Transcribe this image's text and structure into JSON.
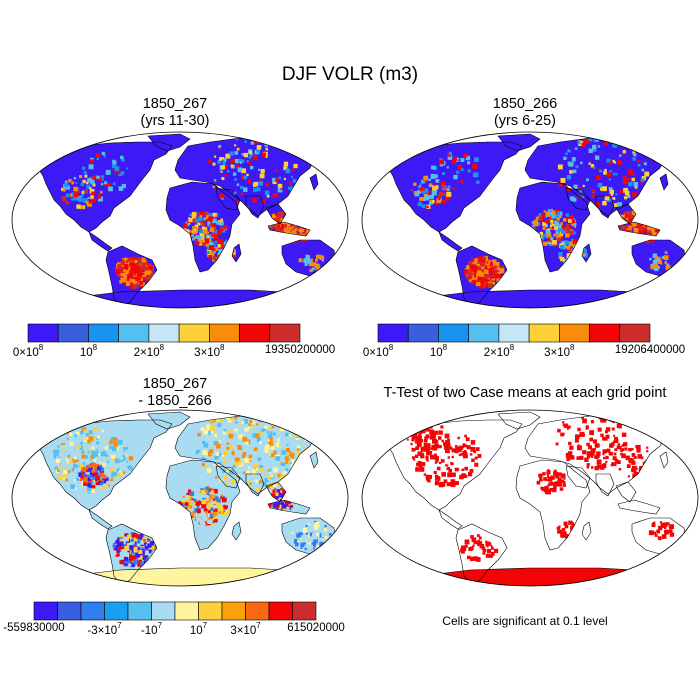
{
  "figure": {
    "title": "DJF VOLR (m3)",
    "panels": [
      {
        "id": "case1",
        "title_lines": [
          "1850_267",
          "(yrs 11-30)"
        ],
        "colorbar": {
          "colors": [
            "#3d1af5",
            "#3a5ee0",
            "#1993f0",
            "#55bff0",
            "#c6e6f7",
            "#fdd137",
            "#f98c0b",
            "#f40406",
            "#cb2d2d"
          ],
          "labels": [
            {
              "pos": 0,
              "base": "0×10",
              "exp": "8"
            },
            {
              "pos": 2,
              "base": "10",
              "exp": "8"
            },
            {
              "pos": 4,
              "base": "2×10",
              "exp": "8"
            },
            {
              "pos": 6,
              "base": "3×10",
              "exp": "8"
            },
            {
              "pos": 9,
              "base": "19350200000",
              "exp": ""
            }
          ]
        }
      },
      {
        "id": "case2",
        "title_lines": [
          "1850_266",
          "(yrs 6-25)"
        ],
        "colorbar": {
          "colors": [
            "#3d1af5",
            "#3a5ee0",
            "#1993f0",
            "#55bff0",
            "#c6e6f7",
            "#fdd137",
            "#f98c0b",
            "#f40406",
            "#cb2d2d"
          ],
          "labels": [
            {
              "pos": 0,
              "base": "0×10",
              "exp": "8"
            },
            {
              "pos": 2,
              "base": "10",
              "exp": "8"
            },
            {
              "pos": 4,
              "base": "2×10",
              "exp": "8"
            },
            {
              "pos": 6,
              "base": "3×10",
              "exp": "8"
            },
            {
              "pos": 9,
              "base": "19206400000",
              "exp": ""
            }
          ]
        }
      },
      {
        "id": "diff",
        "title_lines": [
          "1850_267",
          "- 1850_266"
        ],
        "colorbar": {
          "colors": [
            "#3d1af5",
            "#3a5ee0",
            "#2f7ef0",
            "#1aa0f0",
            "#55bff0",
            "#a9dcf2",
            "#fff59e",
            "#fdd137",
            "#f9a00d",
            "#f96812",
            "#f40406",
            "#cb2d2d"
          ],
          "labels": [
            {
              "pos": 0,
              "base": "-559830000",
              "exp": ""
            },
            {
              "pos": 3,
              "base": "-3×10",
              "exp": "7"
            },
            {
              "pos": 5,
              "base": "-10",
              "exp": "7"
            },
            {
              "pos": 7,
              "base": "10",
              "exp": "7"
            },
            {
              "pos": 9,
              "base": "3×10",
              "exp": "7"
            },
            {
              "pos": 12,
              "base": "615020000",
              "exp": ""
            }
          ]
        }
      },
      {
        "id": "ttest",
        "title_lines": [
          "T-Test of two Case means at each grid point"
        ],
        "note": "Cells are significant at 0.1 level"
      }
    ]
  }
}
